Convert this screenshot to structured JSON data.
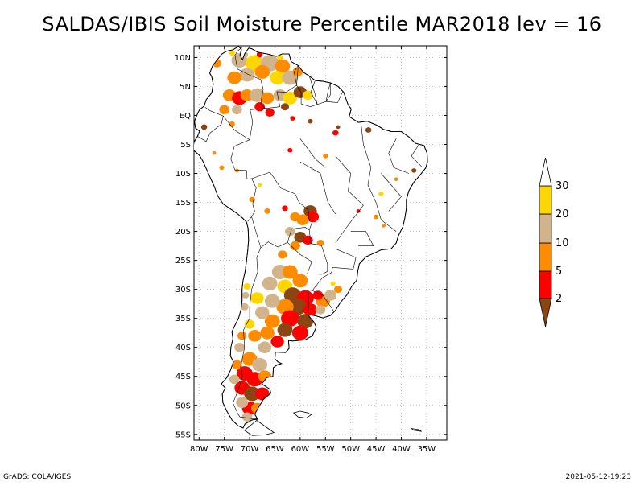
{
  "title": "SALDAS/IBIS Soil Moisture Percentile MAR2018 lev = 16",
  "map": {
    "projection": "lat-lon",
    "lon_range": [
      -81,
      -31
    ],
    "lat_range": [
      -56,
      12
    ],
    "grid": true,
    "lat_ticks": [
      "10N",
      "5N",
      "EQ",
      "5S",
      "10S",
      "15S",
      "20S",
      "25S",
      "30S",
      "35S",
      "40S",
      "45S",
      "50S",
      "55S"
    ],
    "lon_ticks": [
      "80W",
      "75W",
      "70W",
      "65W",
      "60W",
      "55W",
      "50W",
      "45W",
      "40W",
      "35W"
    ]
  },
  "colorbar": {
    "labels": [
      "2",
      "5",
      "10",
      "20",
      "30"
    ],
    "colors": [
      "#8B4513",
      "#FF0000",
      "#FF8C00",
      "#D2B48C",
      "#FFD700",
      "#FFFFFF"
    ]
  },
  "footer": {
    "left": "GrADS: COLA/IGES",
    "right": "2021-05-12-19:23"
  }
}
